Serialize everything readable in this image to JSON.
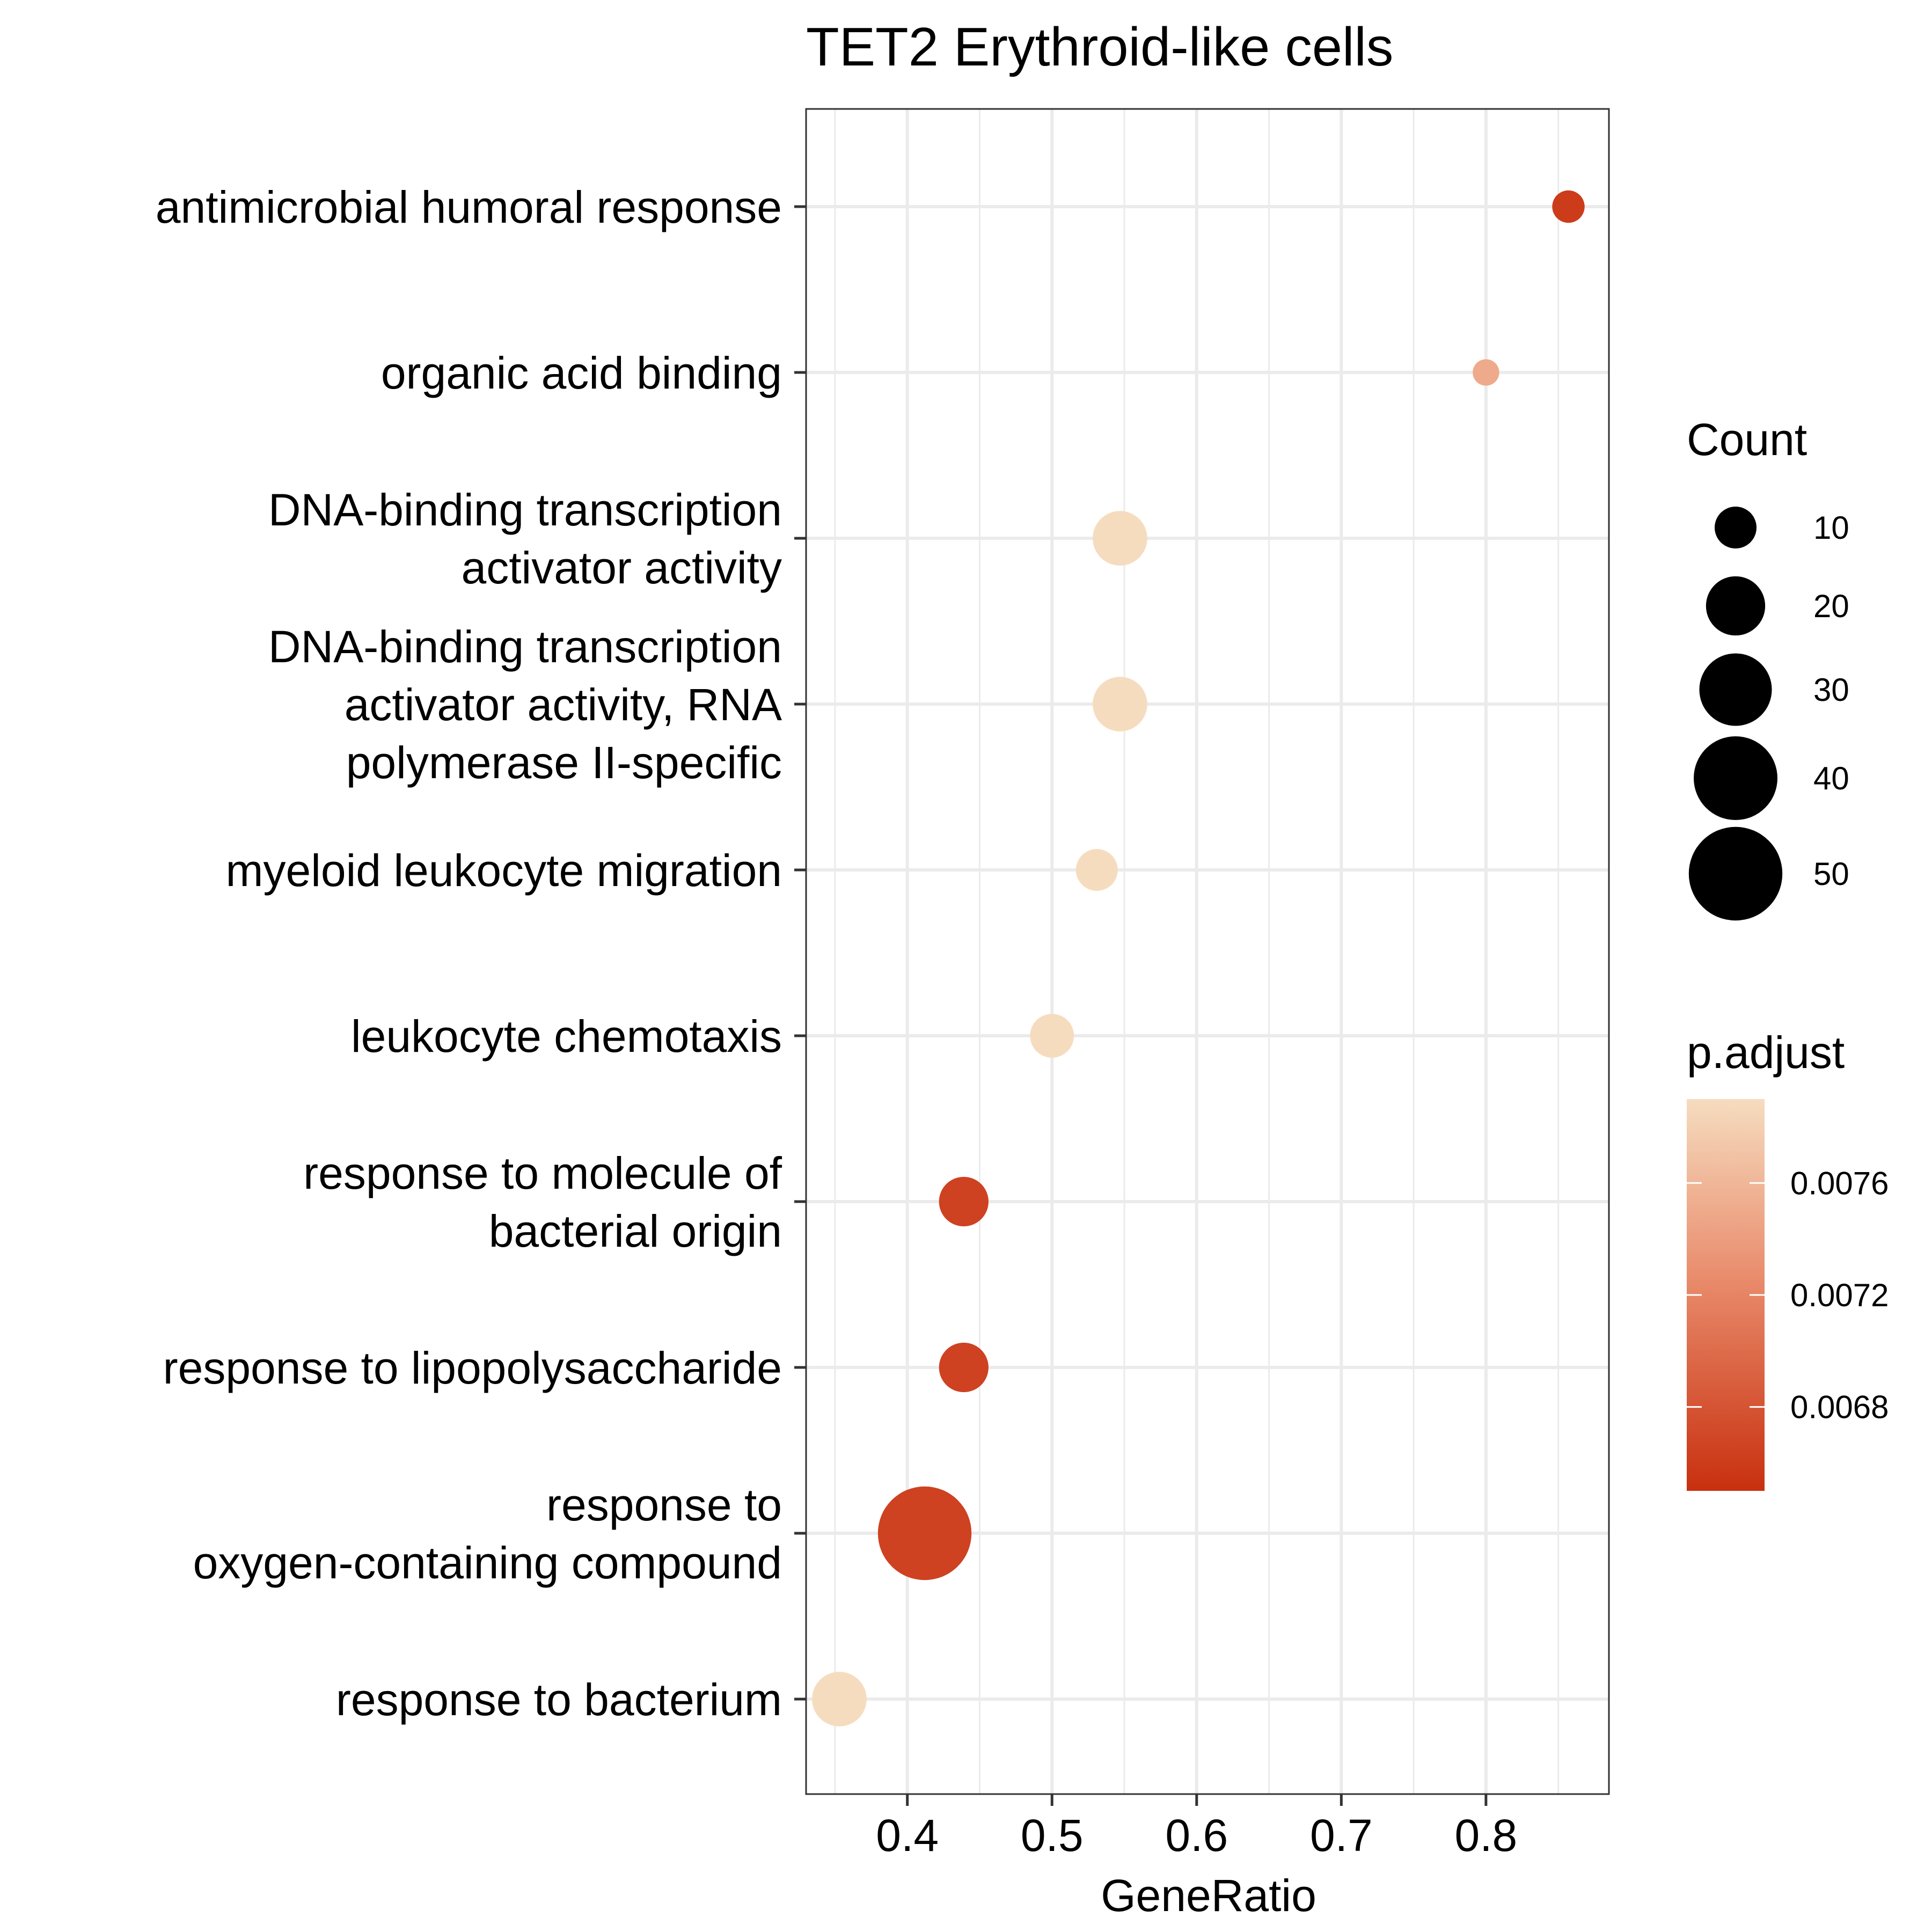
{
  "chart_data": {
    "type": "scatter",
    "title": "TET2 Erythroid-like cells",
    "xlabel": "GeneRatio",
    "ylabel": "",
    "xlim": [
      0.33,
      0.885
    ],
    "x_ticks": [
      "0.4",
      "0.5",
      "0.6",
      "0.7",
      "0.8"
    ],
    "x_tick_values": [
      0.4,
      0.5,
      0.6,
      0.7,
      0.8
    ],
    "grid": true,
    "categories": [
      [
        "antimicrobial humoral response"
      ],
      [
        "organic acid binding"
      ],
      [
        "DNA-binding transcription",
        "activator activity"
      ],
      [
        "DNA-binding transcription",
        "activator activity, RNA",
        "polymerase II-specific"
      ],
      [
        "myeloid leukocyte migration"
      ],
      [
        "leukocyte chemotaxis"
      ],
      [
        "response to molecule of",
        "bacterial origin"
      ],
      [
        "response to lipopolysaccharide"
      ],
      [
        "response to",
        "oxygen-containing compound"
      ],
      [
        "response to bacterium"
      ]
    ],
    "points": [
      {
        "gene_ratio": 0.857,
        "count": 6,
        "p_adjust": 0.0066
      },
      {
        "gene_ratio": 0.8,
        "count": 4,
        "p_adjust": 0.0075
      },
      {
        "gene_ratio": 0.547,
        "count": 17,
        "p_adjust": 0.0079
      },
      {
        "gene_ratio": 0.547,
        "count": 17,
        "p_adjust": 0.0079
      },
      {
        "gene_ratio": 0.531,
        "count": 10,
        "p_adjust": 0.0079
      },
      {
        "gene_ratio": 0.5,
        "count": 11,
        "p_adjust": 0.0079
      },
      {
        "gene_ratio": 0.439,
        "count": 14,
        "p_adjust": 0.00665
      },
      {
        "gene_ratio": 0.439,
        "count": 14,
        "p_adjust": 0.00665
      },
      {
        "gene_ratio": 0.412,
        "count": 50,
        "p_adjust": 0.00665
      },
      {
        "gene_ratio": 0.353,
        "count": 17,
        "p_adjust": 0.0079
      }
    ],
    "legend": {
      "placement": "right",
      "size": {
        "title": "Count",
        "items": [
          {
            "label": "10",
            "value": 10
          },
          {
            "label": "20",
            "value": 20
          },
          {
            "label": "30",
            "value": 30
          },
          {
            "label": "40",
            "value": 40
          },
          {
            "label": "50",
            "value": 50
          }
        ]
      },
      "color": {
        "title": "p.adjust",
        "range": [
          0.0065,
          0.0079
        ],
        "low_color": "#c8300f",
        "mid_color": "#e98d6d",
        "high_color": "#f6dcbf",
        "ticks": [
          {
            "label": "0.0076",
            "value": 0.0076
          },
          {
            "label": "0.0072",
            "value": 0.0072
          },
          {
            "label": "0.0068",
            "value": 0.0068
          }
        ]
      }
    }
  }
}
